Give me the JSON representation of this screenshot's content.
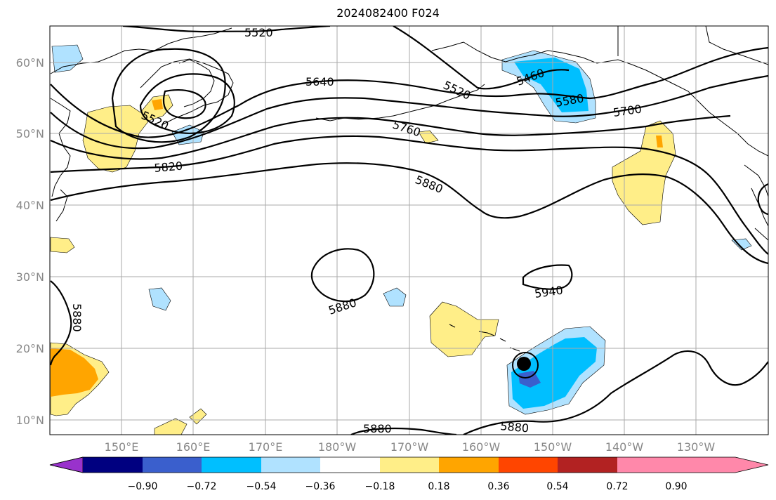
{
  "title": "2024082400 F024",
  "map": {
    "lat_labels": [
      "60°N",
      "50°N",
      "40°N",
      "30°N",
      "20°N",
      "10°N"
    ],
    "lon_labels": [
      "150°E",
      "160°E",
      "170°E",
      "180°W",
      "170°W",
      "160°W",
      "150°W",
      "140°W",
      "130°W"
    ],
    "contour_labels": [
      "5520",
      "5640",
      "5520",
      "5460",
      "5580",
      "5700",
      "5760",
      "5820",
      "5880",
      "5880",
      "5880",
      "5940",
      "5880",
      "5880"
    ]
  },
  "colorbar": {
    "tick_labels": [
      "−0.90",
      "−0.72",
      "−0.54",
      "−0.36",
      "−0.18",
      "0.18",
      "0.36",
      "0.54",
      "0.72",
      "0.90"
    ],
    "colors": [
      "#9932cc",
      "#000080",
      "#3a5fcd",
      "#00bfff",
      "#b0e2ff",
      "#ffffff",
      "#ffee88",
      "#ffa500",
      "#ff4500",
      "#b22222",
      "#ff88aa"
    ]
  }
}
